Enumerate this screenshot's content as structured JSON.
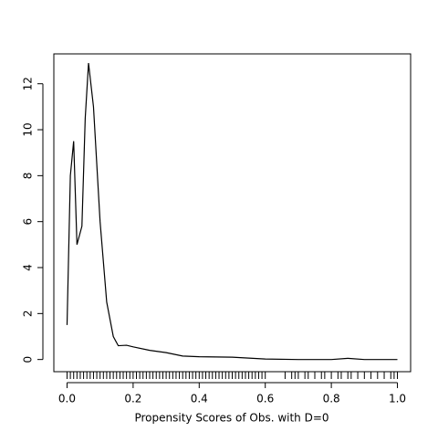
{
  "chart_data": {
    "type": "line",
    "xlabel": "Propensity Scores of Obs. with D=0",
    "x": [
      0.0,
      0.01,
      0.02,
      0.03,
      0.045,
      0.055,
      0.065,
      0.08,
      0.1,
      0.12,
      0.14,
      0.155,
      0.18,
      0.2,
      0.25,
      0.3,
      0.35,
      0.4,
      0.5,
      0.6,
      0.7,
      0.8,
      0.85,
      0.9,
      1.0
    ],
    "values": [
      1.5,
      8,
      9.5,
      5.0,
      5.8,
      10.5,
      12.9,
      11,
      6,
      2.5,
      1.0,
      0.6,
      0.62,
      0.55,
      0.4,
      0.3,
      0.15,
      0.12,
      0.1,
      0.02,
      0.0,
      0.0,
      0.05,
      0.0,
      0.0
    ],
    "rug": [
      0,
      0.01,
      0.02,
      0.03,
      0.04,
      0.05,
      0.06,
      0.07,
      0.08,
      0.09,
      0.1,
      0.11,
      0.12,
      0.13,
      0.14,
      0.15,
      0.16,
      0.17,
      0.18,
      0.19,
      0.2,
      0.21,
      0.22,
      0.23,
      0.24,
      0.25,
      0.26,
      0.27,
      0.28,
      0.29,
      0.3,
      0.31,
      0.32,
      0.33,
      0.34,
      0.35,
      0.36,
      0.37,
      0.38,
      0.39,
      0.4,
      0.41,
      0.42,
      0.43,
      0.44,
      0.45,
      0.46,
      0.47,
      0.48,
      0.49,
      0.5,
      0.51,
      0.52,
      0.53,
      0.54,
      0.55,
      0.56,
      0.57,
      0.58,
      0.59,
      0.6,
      0.66,
      0.68,
      0.69,
      0.7,
      0.72,
      0.73,
      0.75,
      0.77,
      0.78,
      0.8,
      0.82,
      0.83,
      0.85,
      0.86,
      0.88,
      0.9,
      0.92,
      0.94,
      0.96,
      0.98,
      0.99,
      1.0
    ],
    "color": "#000000",
    "xlim": [
      -0.04,
      1.04
    ],
    "xticks": [
      {
        "value": 0,
        "label": "0.0"
      },
      0.2,
      0.4,
      0.6,
      0.8,
      {
        "value": 1,
        "label": "1.0"
      }
    ],
    "ylim": [
      -0.53,
      13.3
    ],
    "yticks": [
      0,
      2,
      4,
      6,
      8,
      10,
      12
    ]
  }
}
